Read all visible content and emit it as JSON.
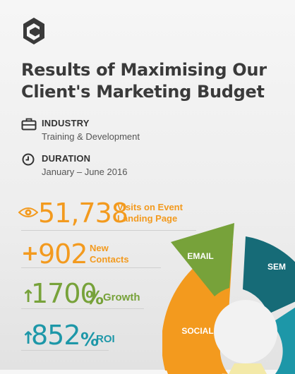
{
  "header": {
    "title_line1": "Results of Maximising Our",
    "title_line2": "Client's Marketing Budget"
  },
  "industry": {
    "label": "INDUSTRY",
    "value": "Training & Development",
    "icon": "briefcase-icon"
  },
  "duration": {
    "label": "DURATION",
    "value": "January – June 2016",
    "icon": "clock-icon"
  },
  "stats": {
    "visits": {
      "number": "51,738",
      "label_line1": "Visits on Event",
      "label_line2": "Landing Page",
      "icon": "eye-icon"
    },
    "contacts": {
      "prefix": "+",
      "number": "902",
      "label_line1": "New",
      "label_line2": "Contacts"
    },
    "growth": {
      "arrow": "↑",
      "number": "1700",
      "unit": "%",
      "label": "Growth"
    },
    "roi": {
      "arrow": "↑",
      "number": "852",
      "unit": "%",
      "label": "ROI"
    }
  },
  "donut": {
    "segments": [
      "EMAIL",
      "SEM",
      "SOCIAL"
    ],
    "colors": {
      "email": "#77a23a",
      "sem": "#166b77",
      "social": "#f39a1e",
      "teal": "#1d97a8",
      "yellow": "#f3e9a8"
    }
  },
  "colors": {
    "orange": "#f39a1e",
    "green": "#77a23a",
    "teal": "#1d97a8",
    "title": "#3a3a3a"
  }
}
